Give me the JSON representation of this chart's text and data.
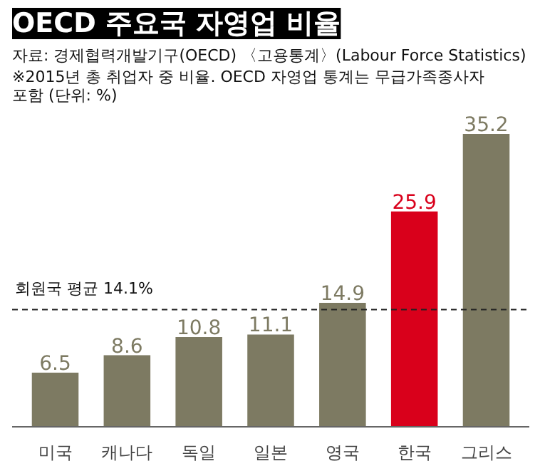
{
  "chart_data": {
    "type": "bar",
    "title": "OECD 주요국 자영업 비율",
    "subtitle": "※2015년 총 취업자 중 비율. OECD 자영업 통계는 무급가족종사자 포함 (단위: %)",
    "annotations": [
      "자료: 경제협력개발기구(OECD) 〈고용통계〉(Labour Force Statistics)"
    ],
    "categories": [
      "미국",
      "캐나다",
      "독일",
      "일본",
      "영국",
      "한국",
      "그리스"
    ],
    "values": [
      6.5,
      8.6,
      10.8,
      11.1,
      14.9,
      25.9,
      35.2
    ],
    "colors": [
      "#7d7a62",
      "#7d7a62",
      "#7d7a62",
      "#7d7a62",
      "#7d7a62",
      "#d9001b",
      "#7d7a62"
    ],
    "data_labels": true,
    "ref_lines": [
      {
        "axis": "y",
        "value": 14.1,
        "label": "회원국 평균 14.1%",
        "color": "#222222",
        "line_style": "dashed"
      }
    ],
    "grid": false
  }
}
